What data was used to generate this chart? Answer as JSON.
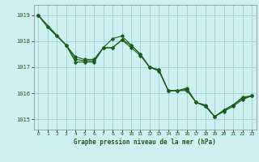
{
  "xlabel": "Graphe pression niveau de la mer (hPa)",
  "xlim": [
    -0.5,
    23.5
  ],
  "ylim": [
    1014.6,
    1019.4
  ],
  "yticks": [
    1015,
    1016,
    1017,
    1018,
    1019
  ],
  "xticks": [
    0,
    1,
    2,
    3,
    4,
    5,
    6,
    7,
    8,
    9,
    10,
    11,
    12,
    13,
    14,
    15,
    16,
    17,
    18,
    19,
    20,
    21,
    22,
    23
  ],
  "background_color": "#cff0f0",
  "grid_color": "#a0d0d0",
  "line_color": "#1a5c1a",
  "series": [
    {
      "x": [
        0,
        1,
        2,
        3,
        4,
        5,
        6,
        7,
        8,
        9,
        10,
        11,
        12,
        13,
        14,
        15,
        16,
        17,
        18,
        19,
        20,
        21,
        22,
        23
      ],
      "y": [
        1019.0,
        1018.55,
        1018.2,
        1017.85,
        1017.2,
        1017.2,
        1017.2,
        1017.75,
        1018.1,
        1018.2,
        1017.85,
        1017.5,
        1017.0,
        1016.9,
        1016.1,
        1016.1,
        1016.1,
        1015.65,
        1015.55,
        1015.1,
        1015.35,
        1015.55,
        1015.8,
        1015.9
      ]
    },
    {
      "x": [
        0,
        1,
        2,
        3,
        4,
        5,
        6,
        7,
        8,
        9,
        10,
        11,
        12,
        13,
        14,
        15,
        16,
        17,
        18,
        19,
        20,
        21,
        22,
        23
      ],
      "y": [
        1019.0,
        1018.55,
        1018.2,
        1017.85,
        1017.4,
        1017.3,
        1017.3,
        1017.75,
        1017.75,
        1018.05,
        1017.85,
        1017.5,
        1017.0,
        1016.9,
        1016.1,
        1016.1,
        1016.15,
        1015.65,
        1015.5,
        1015.1,
        1015.35,
        1015.55,
        1015.85,
        1015.9
      ]
    },
    {
      "x": [
        0,
        3,
        4,
        5,
        6,
        7,
        8,
        9,
        10,
        11,
        12,
        13,
        14,
        15,
        16,
        17,
        18,
        19,
        20,
        21,
        22,
        23
      ],
      "y": [
        1019.0,
        1017.85,
        1017.3,
        1017.25,
        1017.25,
        1017.75,
        1017.75,
        1018.05,
        1017.75,
        1017.45,
        1017.0,
        1016.85,
        1016.1,
        1016.1,
        1016.2,
        1015.65,
        1015.5,
        1015.1,
        1015.3,
        1015.5,
        1015.75,
        1015.9
      ]
    }
  ]
}
